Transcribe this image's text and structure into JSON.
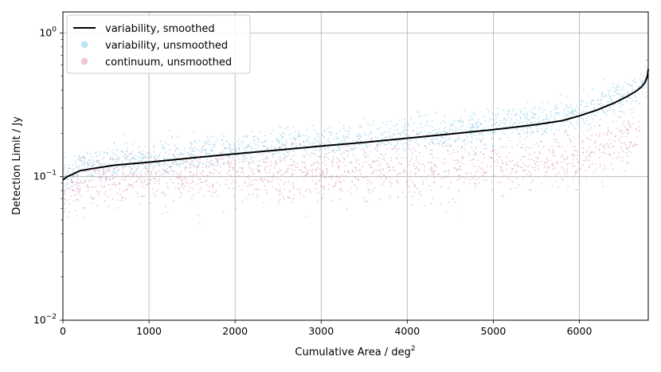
{
  "chart_data": {
    "type": "scatter",
    "title": "",
    "xlabel": "Cumulative Area / deg",
    "xlabel_superscript": "2",
    "ylabel": "Detection Limit / Jy",
    "xlim": [
      0,
      6800
    ],
    "ylim": [
      0.01,
      1.4
    ],
    "yscale": "log",
    "grid": true,
    "legend_position": "top-left",
    "x_ticks": [
      0,
      1000,
      2000,
      3000,
      4000,
      5000,
      6000
    ],
    "y_ticks": [
      {
        "value": 0.01,
        "base": "10",
        "exp": "−2"
      },
      {
        "value": 0.1,
        "base": "10",
        "exp": "−1"
      },
      {
        "value": 1,
        "base": "10",
        "exp": "0"
      }
    ],
    "series": [
      {
        "name": "variability, smoothed",
        "kind": "line",
        "color": "#000000",
        "x": [
          0,
          50,
          100,
          200,
          400,
          600,
          800,
          1000,
          1500,
          2000,
          2500,
          3000,
          3500,
          4000,
          4500,
          5000,
          5500,
          5800,
          6000,
          6200,
          6400,
          6550,
          6650,
          6720,
          6760,
          6790,
          6800
        ],
        "y": [
          0.095,
          0.1,
          0.103,
          0.11,
          0.115,
          0.12,
          0.123,
          0.126,
          0.135,
          0.144,
          0.153,
          0.163,
          0.173,
          0.185,
          0.198,
          0.212,
          0.23,
          0.245,
          0.265,
          0.29,
          0.325,
          0.36,
          0.39,
          0.42,
          0.45,
          0.5,
          0.56
        ]
      },
      {
        "name": "variability, unsmoothed",
        "kind": "scatter",
        "color": "#74c3e8",
        "center_x": [
          0,
          100,
          200,
          400,
          600,
          800,
          1000,
          1500,
          2000,
          2500,
          3000,
          3500,
          4000,
          4500,
          5000,
          5500,
          5800,
          6000,
          6200,
          6400,
          6550,
          6650,
          6720,
          6800
        ],
        "center_y": [
          0.1,
          0.105,
          0.115,
          0.12,
          0.125,
          0.128,
          0.131,
          0.14,
          0.15,
          0.16,
          0.17,
          0.18,
          0.192,
          0.205,
          0.22,
          0.24,
          0.255,
          0.275,
          0.3,
          0.34,
          0.38,
          0.41,
          0.44,
          0.5
        ],
        "spread_dex": 0.06,
        "n_points": 1700
      },
      {
        "name": "continuum, unsmoothed",
        "kind": "scatter",
        "color": "#d986ac",
        "center_x": [
          0,
          100,
          200,
          500,
          1000,
          1500,
          2000,
          2500,
          3000,
          3500,
          4000,
          4500,
          5000,
          5500,
          5900,
          6200,
          6400,
          6550,
          6700
        ],
        "center_y": [
          0.075,
          0.085,
          0.09,
          0.095,
          0.1,
          0.102,
          0.104,
          0.105,
          0.106,
          0.108,
          0.11,
          0.113,
          0.118,
          0.125,
          0.13,
          0.15,
          0.17,
          0.18,
          0.2
        ],
        "spread_dex": 0.1,
        "n_points": 1600
      }
    ]
  }
}
